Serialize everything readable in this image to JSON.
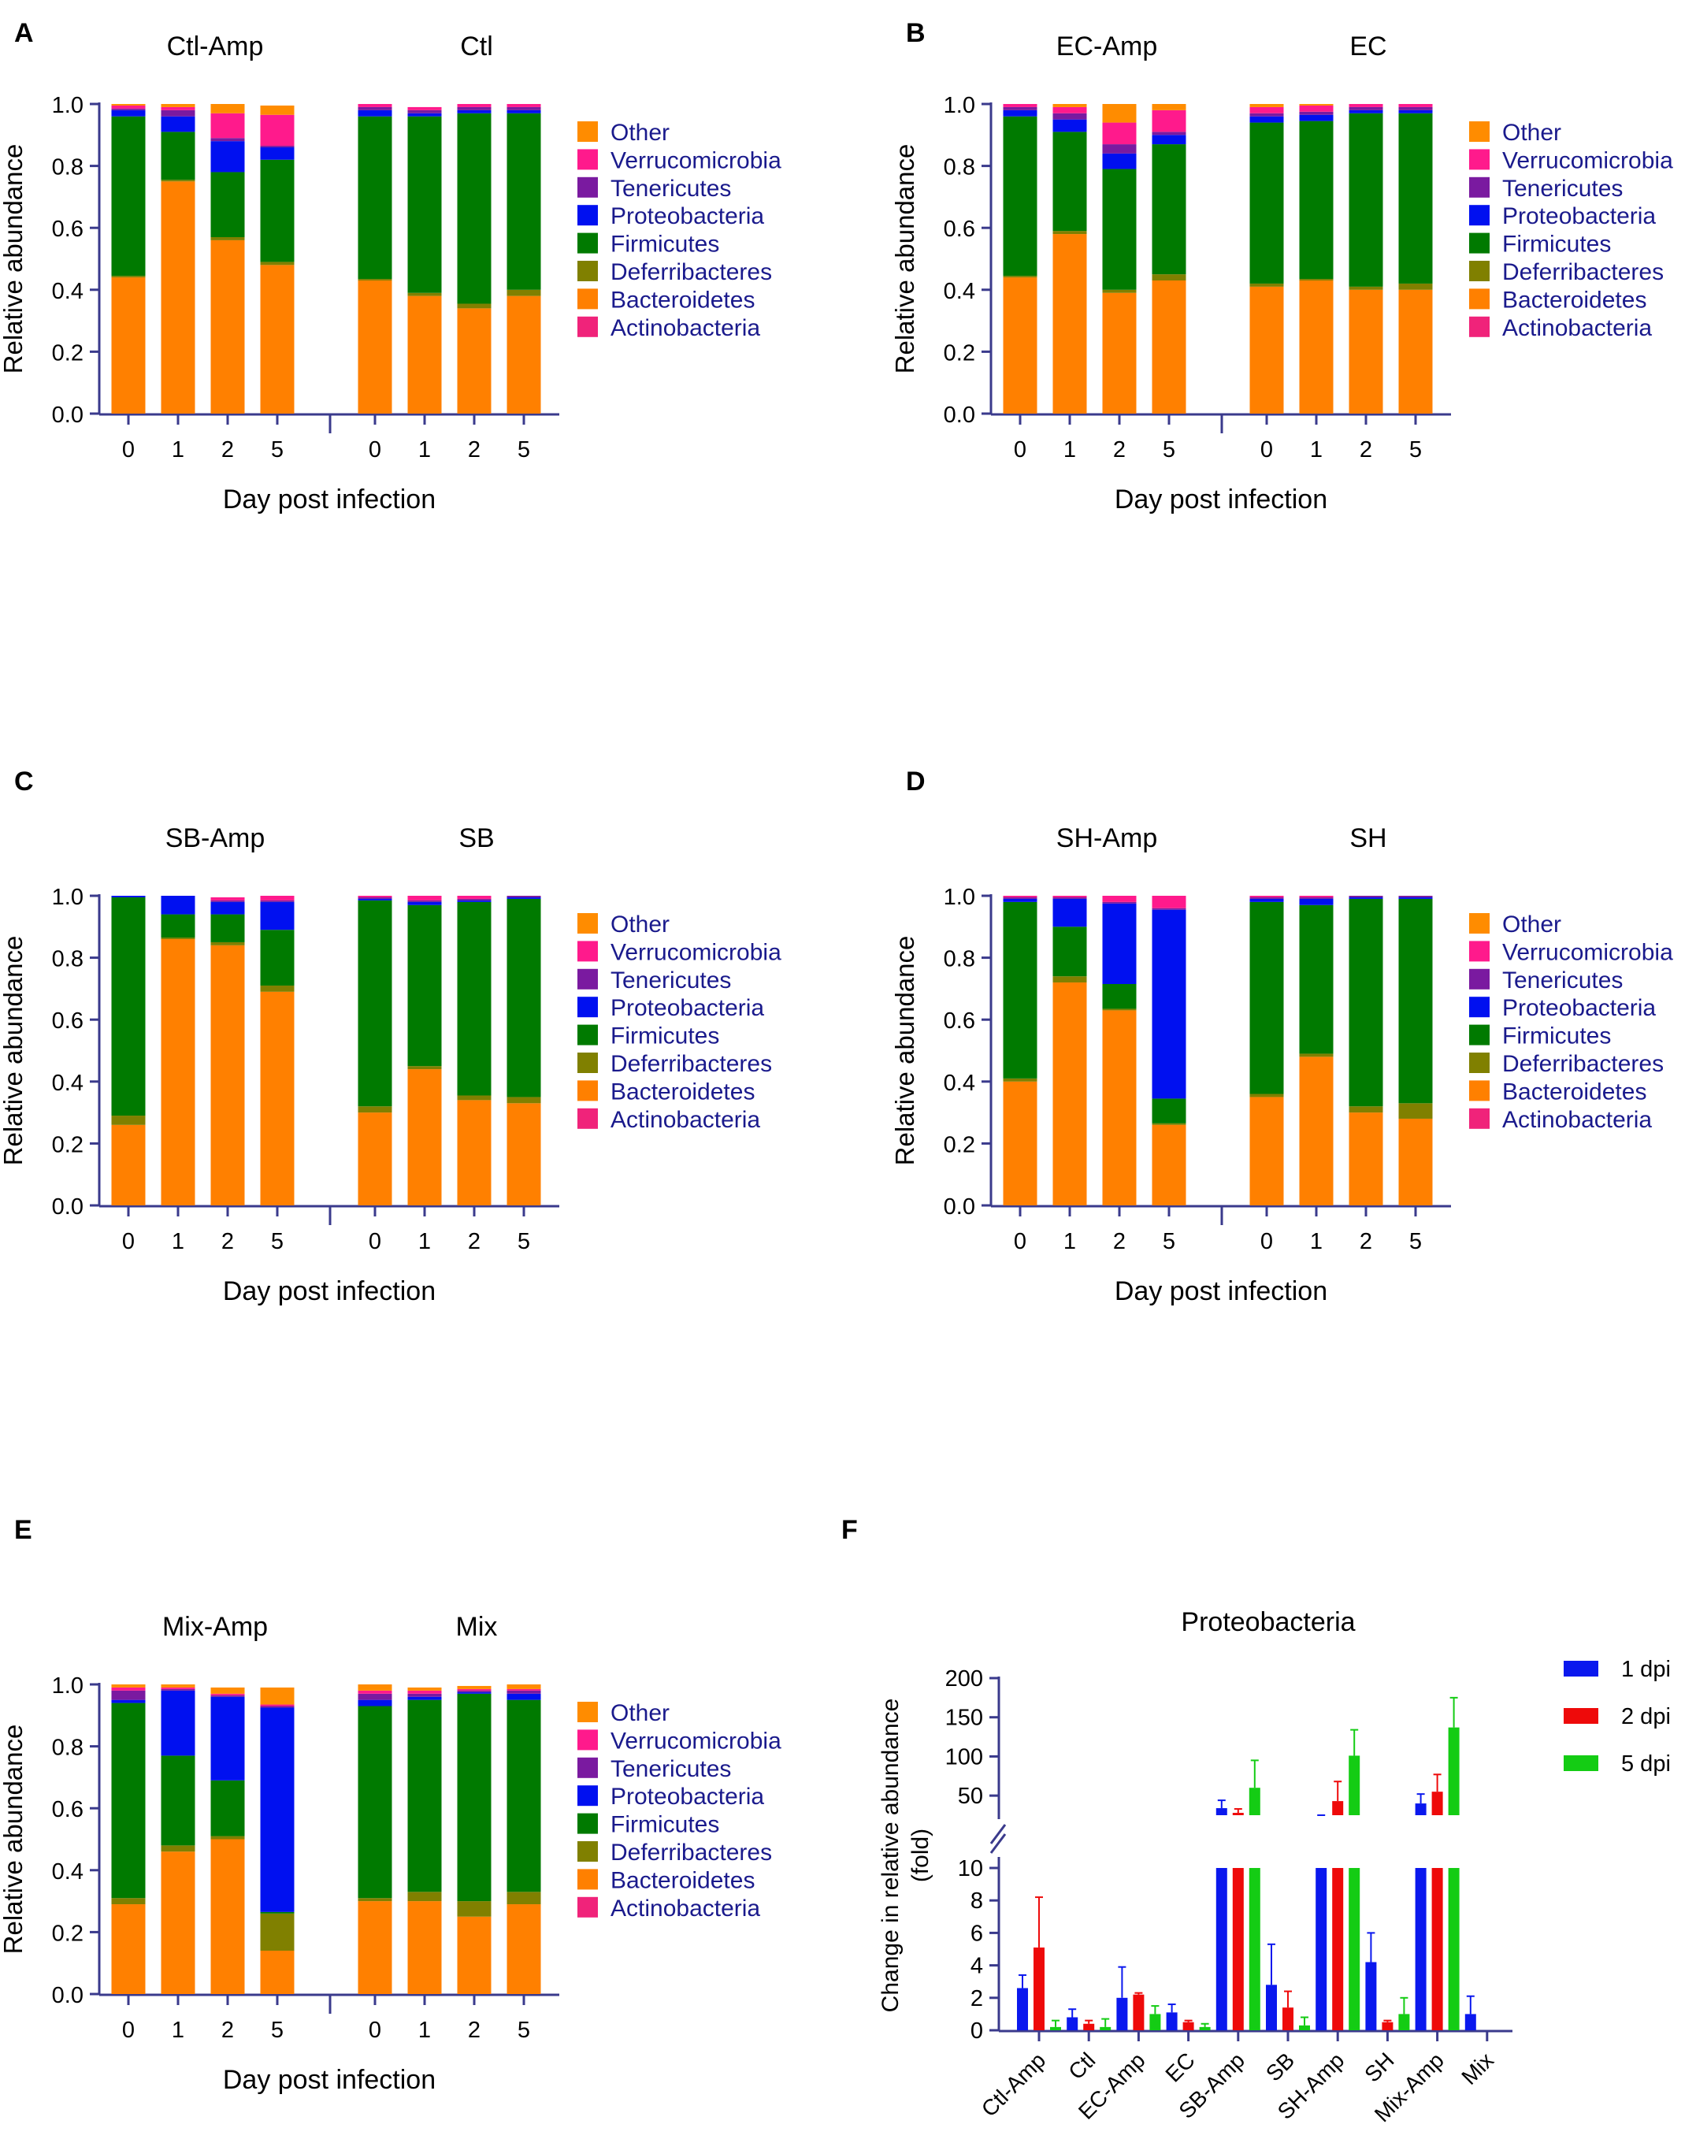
{
  "figure": {
    "panels": {
      "A": {
        "letter": "A",
        "left_group": "Ctl-Amp",
        "right_group": "Ctl"
      },
      "B": {
        "letter": "B",
        "left_group": "EC-Amp",
        "right_group": "EC"
      },
      "C": {
        "letter": "C",
        "left_group": "SB-Amp",
        "right_group": "SB"
      },
      "D": {
        "letter": "D",
        "left_group": "SH-Amp",
        "right_group": "SH"
      },
      "E": {
        "letter": "E",
        "left_group": "Mix-Amp",
        "right_group": "Mix"
      },
      "F": {
        "letter": "F"
      }
    },
    "colors": {
      "Actinobacteria": "#f0237a",
      "Bacteroidetes": "#ff8000",
      "Deferribacteres": "#808000",
      "Firmicutes": "#007a00",
      "Proteobacteria": "#0010f0",
      "Tenericutes": "#7a1aa0",
      "Verrucomicrobia": "#ff1a8c",
      "Other": "#ff8c00",
      "axis": "#3a3a8c",
      "legend_text": "#1a1a8c",
      "dpi1": "#0a18ee",
      "dpi2": "#ee0a0a",
      "dpi5": "#14cc14"
    }
  },
  "chart_data": [
    {
      "id": "A",
      "type": "bar",
      "stacked": true,
      "title_left": "Ctl-Amp",
      "title_right": "Ctl",
      "xlabel": "Day post infection",
      "ylabel": "Relative abundance",
      "ylim": [
        0,
        1
      ],
      "yticks": [
        "0.0",
        "0.2",
        "0.4",
        "0.6",
        "0.8",
        "1.0"
      ],
      "categories": [
        "0",
        "1",
        "2",
        "5",
        "0",
        "1",
        "2",
        "5"
      ],
      "legend": [
        "Other",
        "Verrucomicrobia",
        "Tenericutes",
        "Proteobacteria",
        "Firmicutes",
        "Deferribacteres",
        "Bacteroidetes",
        "Actinobacteria"
      ],
      "series": [
        {
          "name": "Actinobacteria",
          "values": [
            0,
            0,
            0,
            0,
            0,
            0,
            0,
            0
          ]
        },
        {
          "name": "Bacteroidetes",
          "values": [
            0.44,
            0.75,
            0.56,
            0.48,
            0.43,
            0.38,
            0.34,
            0.38
          ]
        },
        {
          "name": "Deferribacteres",
          "values": [
            0.005,
            0.005,
            0.01,
            0.01,
            0.005,
            0.01,
            0.015,
            0.02
          ]
        },
        {
          "name": "Firmicutes",
          "values": [
            0.515,
            0.155,
            0.21,
            0.33,
            0.525,
            0.57,
            0.615,
            0.57
          ]
        },
        {
          "name": "Proteobacteria",
          "values": [
            0.02,
            0.05,
            0.1,
            0.04,
            0.02,
            0.01,
            0.01,
            0.01
          ]
        },
        {
          "name": "Tenericutes",
          "values": [
            0.005,
            0.02,
            0.01,
            0.005,
            0.01,
            0.01,
            0.01,
            0.01
          ]
        },
        {
          "name": "Verrucomicrobia",
          "values": [
            0.01,
            0.01,
            0.08,
            0.1,
            0.01,
            0.01,
            0.01,
            0.01
          ]
        },
        {
          "name": "Other",
          "values": [
            0.005,
            0.01,
            0.03,
            0.03,
            0,
            0,
            0,
            0
          ]
        }
      ]
    },
    {
      "id": "B",
      "type": "bar",
      "stacked": true,
      "title_left": "EC-Amp",
      "title_right": "EC",
      "xlabel": "Day post infection",
      "ylabel": "Relative abundance",
      "ylim": [
        0,
        1
      ],
      "yticks": [
        "0.0",
        "0.2",
        "0.4",
        "0.6",
        "0.8",
        "1.0"
      ],
      "categories": [
        "0",
        "1",
        "2",
        "5",
        "0",
        "1",
        "2",
        "5"
      ],
      "legend": [
        "Other",
        "Verrucomicrobia",
        "Tenericutes",
        "Proteobacteria",
        "Firmicutes",
        "Deferribacteres",
        "Bacteroidetes",
        "Actinobacteria"
      ],
      "series": [
        {
          "name": "Actinobacteria",
          "values": [
            0,
            0,
            0,
            0,
            0,
            0,
            0,
            0
          ]
        },
        {
          "name": "Bacteroidetes",
          "values": [
            0.44,
            0.58,
            0.39,
            0.43,
            0.41,
            0.43,
            0.4,
            0.4
          ]
        },
        {
          "name": "Deferribacteres",
          "values": [
            0.005,
            0.01,
            0.01,
            0.02,
            0.01,
            0.005,
            0.01,
            0.02
          ]
        },
        {
          "name": "Firmicutes",
          "values": [
            0.515,
            0.32,
            0.39,
            0.42,
            0.52,
            0.51,
            0.56,
            0.55
          ]
        },
        {
          "name": "Proteobacteria",
          "values": [
            0.02,
            0.04,
            0.05,
            0.03,
            0.02,
            0.02,
            0.01,
            0.01
          ]
        },
        {
          "name": "Tenericutes",
          "values": [
            0.01,
            0.02,
            0.03,
            0.01,
            0.01,
            0.01,
            0.01,
            0.01
          ]
        },
        {
          "name": "Verrucomicrobia",
          "values": [
            0.01,
            0.02,
            0.07,
            0.07,
            0.02,
            0.02,
            0.01,
            0.01
          ]
        },
        {
          "name": "Other",
          "values": [
            0,
            0.01,
            0.06,
            0.02,
            0.01,
            0.005,
            0,
            0
          ]
        }
      ]
    },
    {
      "id": "C",
      "type": "bar",
      "stacked": true,
      "title_left": "SB-Amp",
      "title_right": "SB",
      "xlabel": "Day post infection",
      "ylabel": "Relative abundance",
      "ylim": [
        0,
        1
      ],
      "yticks": [
        "0.0",
        "0.2",
        "0.4",
        "0.6",
        "0.8",
        "1.0"
      ],
      "categories": [
        "0",
        "1",
        "2",
        "5",
        "0",
        "1",
        "2",
        "5"
      ],
      "legend": [
        "Other",
        "Verrucomicrobia",
        "Tenericutes",
        "Proteobacteria",
        "Firmicutes",
        "Deferribacteres",
        "Bacteroidetes",
        "Actinobacteria"
      ],
      "series": [
        {
          "name": "Actinobacteria",
          "values": [
            0,
            0,
            0,
            0,
            0,
            0,
            0,
            0
          ]
        },
        {
          "name": "Bacteroidetes",
          "values": [
            0.26,
            0.86,
            0.84,
            0.69,
            0.3,
            0.44,
            0.34,
            0.33
          ]
        },
        {
          "name": "Deferribacteres",
          "values": [
            0.03,
            0.005,
            0.01,
            0.02,
            0.02,
            0.01,
            0.015,
            0.02
          ]
        },
        {
          "name": "Firmicutes",
          "values": [
            0.705,
            0.075,
            0.09,
            0.18,
            0.665,
            0.52,
            0.625,
            0.64
          ]
        },
        {
          "name": "Proteobacteria",
          "values": [
            0.005,
            0.06,
            0.04,
            0.09,
            0.005,
            0.01,
            0.005,
            0.005
          ]
        },
        {
          "name": "Tenericutes",
          "values": [
            0,
            0,
            0.005,
            0.005,
            0.005,
            0.005,
            0.005,
            0.005
          ]
        },
        {
          "name": "Verrucomicrobia",
          "values": [
            0,
            0,
            0.01,
            0.015,
            0.005,
            0.015,
            0.01,
            0
          ]
        },
        {
          "name": "Other",
          "values": [
            0,
            0,
            0,
            0,
            0,
            0,
            0,
            0
          ]
        }
      ]
    },
    {
      "id": "D",
      "type": "bar",
      "stacked": true,
      "title_left": "SH-Amp",
      "title_right": "SH",
      "xlabel": "Day post infection",
      "ylabel": "Relative abundance",
      "ylim": [
        0,
        1
      ],
      "yticks": [
        "0.0",
        "0.2",
        "0.4",
        "0.6",
        "0.8",
        "1.0"
      ],
      "categories": [
        "0",
        "1",
        "2",
        "5",
        "0",
        "1",
        "2",
        "5"
      ],
      "legend": [
        "Other",
        "Verrucomicrobia",
        "Tenericutes",
        "Proteobacteria",
        "Firmicutes",
        "Deferribacteres",
        "Bacteroidetes",
        "Actinobacteria"
      ],
      "series": [
        {
          "name": "Actinobacteria",
          "values": [
            0,
            0,
            0,
            0,
            0,
            0,
            0,
            0
          ]
        },
        {
          "name": "Bacteroidetes",
          "values": [
            0.4,
            0.72,
            0.63,
            0.26,
            0.35,
            0.48,
            0.3,
            0.28
          ]
        },
        {
          "name": "Deferribacteres",
          "values": [
            0.01,
            0.02,
            0.005,
            0.005,
            0.01,
            0.01,
            0.02,
            0.05
          ]
        },
        {
          "name": "Firmicutes",
          "values": [
            0.57,
            0.16,
            0.08,
            0.08,
            0.62,
            0.48,
            0.67,
            0.66
          ]
        },
        {
          "name": "Proteobacteria",
          "values": [
            0.01,
            0.09,
            0.26,
            0.61,
            0.01,
            0.02,
            0.005,
            0.005
          ]
        },
        {
          "name": "Tenericutes",
          "values": [
            0.005,
            0.005,
            0.005,
            0.005,
            0.005,
            0.005,
            0.005,
            0.005
          ]
        },
        {
          "name": "Verrucomicrobia",
          "values": [
            0.005,
            0.005,
            0.02,
            0.04,
            0.005,
            0.005,
            0,
            0
          ]
        },
        {
          "name": "Other",
          "values": [
            0,
            0,
            0,
            0,
            0,
            0,
            0,
            0
          ]
        }
      ]
    },
    {
      "id": "E",
      "type": "bar",
      "stacked": true,
      "title_left": "Mix-Amp",
      "title_right": "Mix",
      "xlabel": "Day post infection",
      "ylabel": "Relative abundance",
      "ylim": [
        0,
        1
      ],
      "yticks": [
        "0.0",
        "0.2",
        "0.4",
        "0.6",
        "0.8",
        "1.0"
      ],
      "categories": [
        "0",
        "1",
        "2",
        "5",
        "0",
        "1",
        "2",
        "5"
      ],
      "legend": [
        "Other",
        "Verrucomicrobia",
        "Tenericutes",
        "Proteobacteria",
        "Firmicutes",
        "Deferribacteres",
        "Bacteroidetes",
        "Actinobacteria"
      ],
      "series": [
        {
          "name": "Actinobacteria",
          "values": [
            0,
            0,
            0,
            0,
            0,
            0,
            0,
            0
          ]
        },
        {
          "name": "Bacteroidetes",
          "values": [
            0.29,
            0.46,
            0.5,
            0.14,
            0.3,
            0.3,
            0.25,
            0.29
          ]
        },
        {
          "name": "Deferribacteres",
          "values": [
            0.02,
            0.02,
            0.01,
            0.12,
            0.01,
            0.03,
            0.05,
            0.04
          ]
        },
        {
          "name": "Firmicutes",
          "values": [
            0.63,
            0.29,
            0.18,
            0.005,
            0.62,
            0.62,
            0.67,
            0.62
          ]
        },
        {
          "name": "Proteobacteria",
          "values": [
            0.01,
            0.21,
            0.27,
            0.66,
            0.02,
            0.01,
            0.005,
            0.02
          ]
        },
        {
          "name": "Tenericutes",
          "values": [
            0.03,
            0.005,
            0.005,
            0.005,
            0.02,
            0.01,
            0.005,
            0.01
          ]
        },
        {
          "name": "Verrucomicrobia",
          "values": [
            0.01,
            0.005,
            0.005,
            0.005,
            0.01,
            0.01,
            0.005,
            0.005
          ]
        },
        {
          "name": "Other",
          "values": [
            0.01,
            0.01,
            0.02,
            0.055,
            0.02,
            0.01,
            0.01,
            0.015
          ]
        }
      ]
    },
    {
      "id": "F",
      "type": "bar",
      "stacked": false,
      "title": "Proteobacteria",
      "ylabel": "Change in relative abundance (fold)",
      "ylabel_lines": [
        "Change in relative abundance",
        "(fold)"
      ],
      "y_break": true,
      "lower_ylim": [
        0,
        10
      ],
      "upper_ylim": [
        25,
        200
      ],
      "lower_yticks": [
        "0",
        "2",
        "4",
        "6",
        "8",
        "10"
      ],
      "upper_yticks": [
        "50",
        "100",
        "150",
        "200"
      ],
      "categories": [
        "Ctl-Amp",
        "Ctl",
        "EC-Amp",
        "EC",
        "SB-Amp",
        "SB",
        "SH-Amp",
        "SH",
        "Mix-Amp",
        "Mix"
      ],
      "series": [
        {
          "name": "1 dpi",
          "values": [
            2.6,
            0.8,
            2.0,
            1.1,
            34,
            2.8,
            17,
            4.2,
            40,
            1.0
          ],
          "errors": [
            0.8,
            0.5,
            1.9,
            0.5,
            10,
            2.5,
            6,
            1.8,
            12,
            1.1
          ]
        },
        {
          "name": "2 dpi",
          "values": [
            5.1,
            0.4,
            2.2,
            0.5,
            28,
            1.4,
            43,
            0.5,
            55,
            0
          ],
          "errors": [
            3.1,
            0.2,
            0.1,
            0.1,
            5,
            1.0,
            25,
            0.1,
            22,
            0
          ]
        },
        {
          "name": "5 dpi",
          "values": [
            0.2,
            0.2,
            1.0,
            0.2,
            60,
            0.3,
            101,
            1.0,
            137,
            0
          ],
          "errors": [
            0.4,
            0.5,
            0.5,
            0.2,
            35,
            0.5,
            33,
            1.0,
            38,
            0
          ]
        }
      ]
    }
  ]
}
